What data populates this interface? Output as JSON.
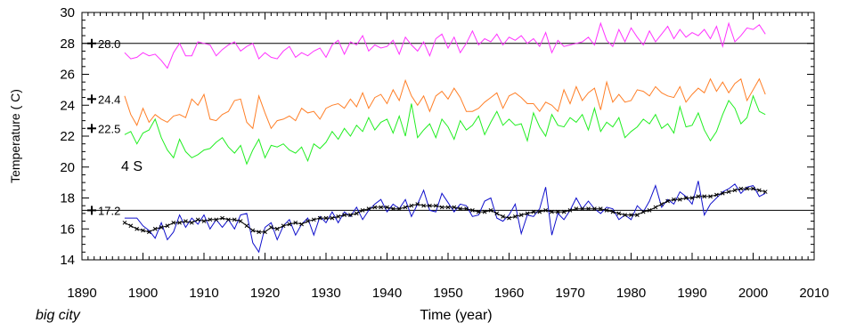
{
  "chart_data": {
    "type": "line",
    "xlabel": "Time  (year)",
    "ylabel": "Temperature  ( C)",
    "xlim": [
      1890,
      2010
    ],
    "ylim": [
      14,
      30
    ],
    "x_ticks": [
      1890,
      1900,
      1910,
      1920,
      1930,
      1940,
      1950,
      1960,
      1970,
      1980,
      1990,
      2000,
      2010
    ],
    "y_ticks": [
      14,
      16,
      18,
      20,
      22,
      24,
      26,
      28,
      30
    ],
    "grid": false,
    "annotation": "4 S",
    "caption": "big city",
    "reference_lines": [
      {
        "label": "28.0",
        "value": 28.0
      },
      {
        "label": "24.4",
        "value": 24.4
      },
      {
        "label": "22.5",
        "value": 22.5
      },
      {
        "label": "17.2",
        "value": 17.2
      }
    ],
    "series": [
      {
        "color": "#ff33ff",
        "x_start": 1897,
        "values": [
          27.4,
          27.0,
          27.1,
          27.4,
          27.2,
          27.3,
          26.9,
          26.4,
          27.4,
          28.0,
          27.2,
          27.2,
          28.1,
          28.0,
          27.9,
          27.2,
          27.6,
          27.9,
          28.1,
          27.5,
          27.8,
          28.0,
          27.0,
          27.4,
          27.1,
          27.0,
          27.5,
          27.8,
          27.1,
          27.4,
          27.2,
          27.5,
          27.7,
          27.1,
          27.9,
          28.2,
          27.3,
          28.1,
          27.9,
          28.5,
          27.5,
          27.9,
          27.7,
          27.8,
          28.2,
          27.3,
          28.4,
          27.9,
          27.5,
          28.1,
          27.2,
          28.3,
          28.6,
          27.7,
          28.4,
          27.4,
          28.0,
          28.8,
          27.9,
          28.3,
          28.1,
          28.6,
          27.9,
          28.4,
          28.2,
          28.5,
          28.0,
          28.3,
          27.8,
          28.7,
          27.4,
          28.2,
          27.8,
          27.9,
          28.0,
          28.1,
          28.4,
          27.9,
          29.3,
          28.2,
          27.8,
          28.9,
          28.1,
          29.0,
          28.4,
          27.9,
          28.8,
          28.1,
          28.6,
          29.1,
          28.3,
          28.9,
          28.4,
          28.7,
          28.5,
          28.9,
          28.3,
          29.1,
          27.8,
          29.3,
          28.1,
          28.5,
          29.0,
          28.9,
          29.2,
          28.6
        ]
      },
      {
        "color": "#ff7f27",
        "x_start": 1897,
        "values": [
          24.6,
          23.4,
          22.7,
          23.8,
          22.9,
          23.4,
          23.1,
          22.9,
          23.3,
          23.4,
          23.2,
          24.4,
          24.0,
          24.7,
          23.1,
          23.0,
          23.4,
          23.6,
          24.3,
          24.4,
          22.9,
          22.5,
          24.6,
          23.5,
          22.5,
          23.0,
          23.1,
          23.3,
          23.0,
          23.8,
          23.5,
          23.6,
          23.1,
          23.8,
          24.0,
          24.1,
          23.8,
          24.4,
          23.9,
          24.8,
          23.8,
          24.5,
          24.7,
          24.1,
          25.0,
          24.3,
          25.6,
          24.6,
          24.0,
          24.6,
          23.6,
          24.6,
          24.9,
          24.4,
          25.1,
          24.5,
          23.6,
          23.6,
          23.8,
          24.2,
          24.5,
          24.8,
          23.8,
          24.6,
          24.8,
          24.5,
          24.1,
          24.1,
          23.6,
          24.2,
          24.0,
          23.6,
          25.0,
          24.1,
          25.2,
          24.3,
          24.8,
          25.1,
          23.7,
          25.5,
          24.2,
          24.7,
          24.2,
          24.3,
          25.0,
          24.9,
          24.6,
          25.2,
          24.8,
          24.6,
          24.5,
          25.2,
          24.2,
          24.7,
          25.1,
          24.8,
          25.7,
          24.9,
          25.5,
          24.8,
          25.4,
          25.7,
          24.3,
          25.0,
          25.7,
          24.7
        ]
      },
      {
        "color": "#22ee22",
        "x_start": 1897,
        "values": [
          22.1,
          22.3,
          21.5,
          22.2,
          22.4,
          23.1,
          21.9,
          21.1,
          20.6,
          21.8,
          21.0,
          20.6,
          20.8,
          21.1,
          21.2,
          21.6,
          21.9,
          21.3,
          20.9,
          21.4,
          20.2,
          21.1,
          21.8,
          20.6,
          21.4,
          21.3,
          21.5,
          21.1,
          20.9,
          21.3,
          20.4,
          21.5,
          21.2,
          21.6,
          22.3,
          21.8,
          22.5,
          22.0,
          22.7,
          22.3,
          23.2,
          22.4,
          22.9,
          23.1,
          22.2,
          23.3,
          22.0,
          24.1,
          21.9,
          22.4,
          22.8,
          21.9,
          23.1,
          22.6,
          21.8,
          23.0,
          22.4,
          22.7,
          23.3,
          22.1,
          22.9,
          23.6,
          22.7,
          23.1,
          22.7,
          22.8,
          21.7,
          23.5,
          22.6,
          22.0,
          23.4,
          22.7,
          22.6,
          23.2,
          22.9,
          23.4,
          22.4,
          23.8,
          22.3,
          22.9,
          22.6,
          23.2,
          21.9,
          22.3,
          22.6,
          23.1,
          22.8,
          23.4,
          22.5,
          22.8,
          22.2,
          23.9,
          22.6,
          22.7,
          23.5,
          22.4,
          21.7,
          22.3,
          23.4,
          24.3,
          23.8,
          22.8,
          23.2,
          24.6,
          23.6,
          23.4
        ]
      },
      {
        "color": "#1010cc",
        "x_start": 1897,
        "values": [
          16.7,
          16.7,
          16.7,
          16.2,
          15.9,
          15.4,
          16.4,
          15.3,
          15.8,
          16.9,
          16.1,
          16.7,
          16.3,
          16.9,
          16.0,
          16.6,
          16.1,
          16.6,
          16.0,
          16.9,
          17.0,
          15.1,
          14.5,
          16.1,
          16.4,
          15.3,
          16.2,
          16.6,
          15.6,
          16.3,
          16.7,
          15.6,
          16.8,
          16.4,
          17.1,
          16.4,
          17.1,
          16.8,
          17.4,
          16.6,
          17.2,
          17.6,
          17.9,
          17.1,
          17.6,
          17.3,
          17.9,
          16.8,
          17.6,
          18.5,
          17.2,
          17.1,
          18.3,
          17.7,
          17.1,
          17.6,
          17.5,
          16.8,
          16.9,
          17.8,
          18.0,
          16.7,
          16.5,
          16.9,
          17.6,
          15.7,
          16.9,
          16.8,
          17.3,
          18.7,
          15.6,
          17.0,
          16.6,
          17.2,
          18.0,
          17.3,
          17.8,
          17.3,
          17.0,
          17.4,
          17.3,
          16.6,
          16.9,
          16.6,
          17.5,
          17.1,
          17.8,
          18.8,
          17.4,
          17.9,
          17.6,
          18.4,
          18.1,
          17.6,
          19.1,
          16.9,
          17.6,
          18.0,
          18.4,
          18.6,
          18.9,
          18.3,
          18.7,
          18.8,
          18.1,
          18.3
        ]
      },
      {
        "color": "#000000",
        "marker": "x",
        "x_start": 1897,
        "values": [
          16.4,
          16.2,
          16.0,
          15.9,
          15.8,
          16.0,
          16.1,
          16.2,
          16.4,
          16.4,
          16.5,
          16.4,
          16.6,
          16.5,
          16.6,
          16.6,
          16.7,
          16.6,
          16.6,
          16.5,
          16.2,
          15.9,
          15.8,
          15.8,
          16.1,
          16.0,
          16.2,
          16.3,
          16.4,
          16.3,
          16.5,
          16.6,
          16.7,
          16.7,
          16.7,
          16.8,
          16.9,
          16.9,
          17.0,
          17.2,
          17.3,
          17.4,
          17.4,
          17.4,
          17.3,
          17.3,
          17.4,
          17.5,
          17.6,
          17.5,
          17.5,
          17.5,
          17.4,
          17.4,
          17.4,
          17.3,
          17.3,
          17.2,
          17.1,
          17.1,
          17.2,
          17.0,
          16.8,
          16.7,
          16.8,
          16.9,
          17.0,
          17.1,
          17.1,
          17.2,
          17.1,
          17.1,
          17.1,
          17.2,
          17.3,
          17.3,
          17.3,
          17.3,
          17.3,
          17.2,
          17.1,
          17.0,
          16.9,
          16.9,
          16.9,
          17.1,
          17.2,
          17.4,
          17.6,
          17.8,
          17.9,
          17.9,
          18.0,
          18.0,
          18.1,
          18.1,
          18.1,
          18.2,
          18.3,
          18.4,
          18.5,
          18.6,
          18.6,
          18.6,
          18.5,
          18.4
        ]
      }
    ]
  }
}
